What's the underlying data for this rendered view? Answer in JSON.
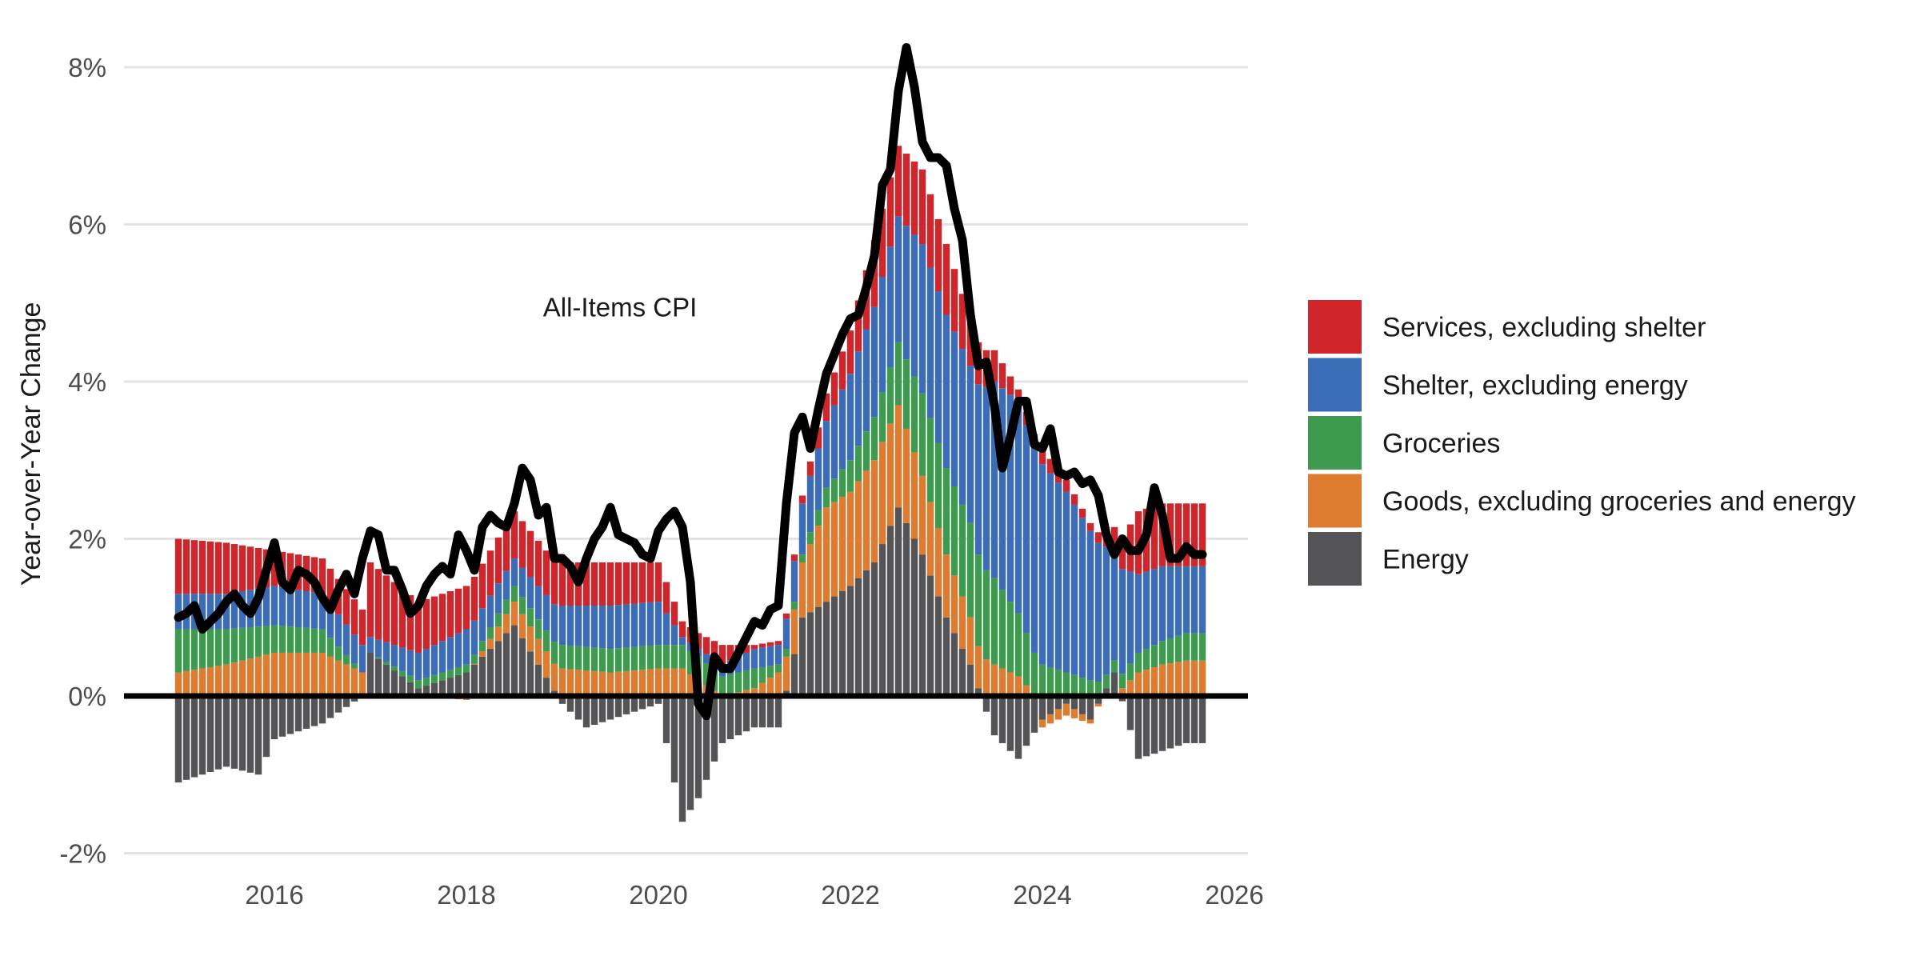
{
  "chart_data": {
    "type": "bar",
    "subtype": "stacked bar with line overlay",
    "title": "",
    "xlabel": "",
    "ylabel": "Year-over-Year Change",
    "xlim": [
      2014.75,
      2026.0
    ],
    "ylim": [
      -2,
      8
    ],
    "x_ticks": [
      2016,
      2018,
      2020,
      2022,
      2024,
      2026
    ],
    "x_tick_labels": [
      "2016",
      "2018",
      "2020",
      "2022",
      "2024",
      "2026"
    ],
    "y_ticks": [
      -2,
      0,
      2,
      4,
      6,
      8
    ],
    "y_tick_labels": [
      "-2%",
      "0%",
      "2%",
      "4%",
      "6%",
      "8%"
    ],
    "grid": "horizontal",
    "legend_position": "right",
    "x_start": "2015-01",
    "frequency": "monthly",
    "series": [
      {
        "name": "Services, excluding shelter",
        "color": "#d0262b",
        "keyframes": [
          [
            0,
            0.7
          ],
          [
            6,
            0.65
          ],
          [
            12,
            0.45
          ],
          [
            18,
            0.45
          ],
          [
            23,
            0.45
          ],
          [
            24,
            0.95
          ],
          [
            30,
            0.65
          ],
          [
            36,
            0.55
          ],
          [
            42,
            0.6
          ],
          [
            48,
            0.55
          ],
          [
            54,
            0.55
          ],
          [
            60,
            0.5
          ],
          [
            63,
            0.2
          ],
          [
            65,
            0.2
          ],
          [
            68,
            0.25
          ],
          [
            72,
            0.05
          ],
          [
            75,
            0.05
          ],
          [
            78,
            0.1
          ],
          [
            81,
            0.35
          ],
          [
            84,
            0.55
          ],
          [
            87,
            0.85
          ],
          [
            90,
            0.9
          ],
          [
            93,
            0.95
          ],
          [
            96,
            0.9
          ],
          [
            99,
            0.6
          ],
          [
            102,
            0.4
          ],
          [
            105,
            0.15
          ],
          [
            108,
            0.2
          ],
          [
            111,
            0.15
          ],
          [
            114,
            0.1
          ],
          [
            117,
            0.2
          ],
          [
            120,
            0.8
          ],
          [
            123,
            0.8
          ],
          [
            126,
            0.8
          ]
        ]
      },
      {
        "name": "Shelter, excluding energy",
        "color": "#3a6cb7",
        "keyframes": [
          [
            0,
            0.45
          ],
          [
            6,
            0.45
          ],
          [
            12,
            0.5
          ],
          [
            18,
            0.45
          ],
          [
            23,
            0.35
          ],
          [
            24,
            0.2
          ],
          [
            30,
            0.35
          ],
          [
            36,
            0.45
          ],
          [
            42,
            0.35
          ],
          [
            48,
            0.5
          ],
          [
            54,
            0.55
          ],
          [
            60,
            0.55
          ],
          [
            63,
            0.1
          ],
          [
            65,
            0.1
          ],
          [
            68,
            0.15
          ],
          [
            72,
            0.25
          ],
          [
            75,
            0.25
          ],
          [
            78,
            0.65
          ],
          [
            81,
            0.85
          ],
          [
            84,
            1.1
          ],
          [
            87,
            1.4
          ],
          [
            90,
            1.6
          ],
          [
            93,
            1.9
          ],
          [
            96,
            1.95
          ],
          [
            99,
            2.0
          ],
          [
            102,
            2.5
          ],
          [
            105,
            2.7
          ],
          [
            108,
            2.55
          ],
          [
            111,
            2.3
          ],
          [
            114,
            1.9
          ],
          [
            117,
            1.5
          ],
          [
            120,
            1.0
          ],
          [
            123,
            0.95
          ],
          [
            126,
            0.85
          ]
        ]
      },
      {
        "name": "Groceries",
        "color": "#3e9a4f",
        "keyframes": [
          [
            0,
            0.55
          ],
          [
            6,
            0.45
          ],
          [
            12,
            0.35
          ],
          [
            18,
            0.3
          ],
          [
            23,
            0.0
          ],
          [
            24,
            0.0
          ],
          [
            30,
            0.1
          ],
          [
            36,
            0.1
          ],
          [
            42,
            0.2
          ],
          [
            48,
            0.3
          ],
          [
            54,
            0.3
          ],
          [
            60,
            0.3
          ],
          [
            63,
            0.3
          ],
          [
            65,
            0.3
          ],
          [
            68,
            0.25
          ],
          [
            72,
            0.25
          ],
          [
            75,
            0.1
          ],
          [
            78,
            0.1
          ],
          [
            81,
            0.25
          ],
          [
            84,
            0.4
          ],
          [
            87,
            0.55
          ],
          [
            90,
            0.8
          ],
          [
            93,
            1.05
          ],
          [
            96,
            1.1
          ],
          [
            99,
            1.2
          ],
          [
            102,
            1.1
          ],
          [
            105,
            0.8
          ],
          [
            108,
            0.4
          ],
          [
            111,
            0.3
          ],
          [
            114,
            0.2
          ],
          [
            117,
            0.15
          ],
          [
            120,
            0.25
          ],
          [
            123,
            0.3
          ],
          [
            126,
            0.35
          ]
        ]
      },
      {
        "name": "Goods, excluding groceries and energy",
        "color": "#de7b2e",
        "keyframes": [
          [
            0,
            0.3
          ],
          [
            6,
            0.4
          ],
          [
            12,
            0.55
          ],
          [
            18,
            0.55
          ],
          [
            23,
            0.3
          ],
          [
            24,
            0.0
          ],
          [
            30,
            0.0
          ],
          [
            36,
            -0.05
          ],
          [
            42,
            0.3
          ],
          [
            48,
            0.35
          ],
          [
            54,
            0.3
          ],
          [
            60,
            0.35
          ],
          [
            63,
            0.35
          ],
          [
            65,
            0.2
          ],
          [
            68,
            0.0
          ],
          [
            72,
            0.1
          ],
          [
            75,
            0.3
          ],
          [
            78,
            0.7
          ],
          [
            81,
            1.2
          ],
          [
            84,
            1.2
          ],
          [
            87,
            1.3
          ],
          [
            90,
            1.3
          ],
          [
            93,
            1.0
          ],
          [
            96,
            0.8
          ],
          [
            99,
            0.6
          ],
          [
            102,
            0.4
          ],
          [
            105,
            0.25
          ],
          [
            108,
            -0.1
          ],
          [
            111,
            -0.15
          ],
          [
            114,
            -0.05
          ],
          [
            117,
            0.0
          ],
          [
            120,
            0.3
          ],
          [
            123,
            0.4
          ],
          [
            126,
            0.45
          ]
        ]
      },
      {
        "name": "Energy",
        "color": "#545356",
        "keyframes": [
          [
            0,
            -1.1
          ],
          [
            6,
            -0.9
          ],
          [
            10,
            -1.0
          ],
          [
            12,
            -0.55
          ],
          [
            18,
            -0.35
          ],
          [
            23,
            0.0
          ],
          [
            24,
            0.55
          ],
          [
            30,
            0.1
          ],
          [
            36,
            0.3
          ],
          [
            42,
            0.9
          ],
          [
            48,
            -0.1
          ],
          [
            51,
            -0.4
          ],
          [
            54,
            -0.3
          ],
          [
            60,
            -0.1
          ],
          [
            63,
            -1.6
          ],
          [
            65,
            -1.3
          ],
          [
            68,
            -0.6
          ],
          [
            72,
            -0.4
          ],
          [
            75,
            -0.4
          ],
          [
            78,
            1.0
          ],
          [
            81,
            1.2
          ],
          [
            84,
            1.4
          ],
          [
            87,
            1.7
          ],
          [
            90,
            2.4
          ],
          [
            93,
            1.8
          ],
          [
            96,
            1.0
          ],
          [
            99,
            0.4
          ],
          [
            102,
            -0.5
          ],
          [
            105,
            -0.8
          ],
          [
            108,
            -0.3
          ],
          [
            111,
            -0.1
          ],
          [
            114,
            -0.3
          ],
          [
            117,
            0.3
          ],
          [
            120,
            -0.8
          ],
          [
            123,
            -0.7
          ],
          [
            126,
            -0.6
          ]
        ]
      }
    ],
    "line": {
      "name": "All-Items CPI",
      "color": "#000000",
      "values": [
        1.0,
        1.05,
        1.15,
        0.85,
        0.95,
        1.05,
        1.2,
        1.3,
        1.15,
        1.05,
        1.25,
        1.6,
        1.95,
        1.45,
        1.35,
        1.6,
        1.55,
        1.45,
        1.25,
        1.1,
        1.35,
        1.55,
        1.3,
        1.75,
        2.1,
        2.05,
        1.6,
        1.6,
        1.35,
        1.05,
        1.15,
        1.4,
        1.55,
        1.65,
        1.55,
        2.05,
        1.85,
        1.6,
        2.15,
        2.3,
        2.2,
        2.15,
        2.45,
        2.9,
        2.75,
        2.3,
        2.4,
        1.75,
        1.75,
        1.65,
        1.45,
        1.75,
        2.0,
        2.15,
        2.4,
        2.05,
        2.0,
        1.95,
        1.8,
        1.75,
        2.1,
        2.25,
        2.35,
        2.15,
        1.45,
        -0.1,
        -0.25,
        0.5,
        0.35,
        0.35,
        0.55,
        0.75,
        0.95,
        0.9,
        1.1,
        1.15,
        2.45,
        3.35,
        3.55,
        3.15,
        3.65,
        4.1,
        4.35,
        4.6,
        4.8,
        4.85,
        5.2,
        5.6,
        6.5,
        6.7,
        7.7,
        8.25,
        7.75,
        7.05,
        6.85,
        6.85,
        6.75,
        6.2,
        5.8,
        4.85,
        4.2,
        4.25,
        3.7,
        2.9,
        3.3,
        3.75,
        3.75,
        3.2,
        3.15,
        3.4,
        2.85,
        2.8,
        2.85,
        2.7,
        2.75,
        2.55,
        2.05,
        1.8,
        2.0,
        1.85,
        1.85,
        2.05,
        2.65,
        2.3,
        1.75,
        1.75,
        1.9,
        1.8,
        1.8
      ]
    },
    "annotation": {
      "text": "All-Items CPI",
      "x": 2019.6,
      "y": 4.95
    }
  }
}
